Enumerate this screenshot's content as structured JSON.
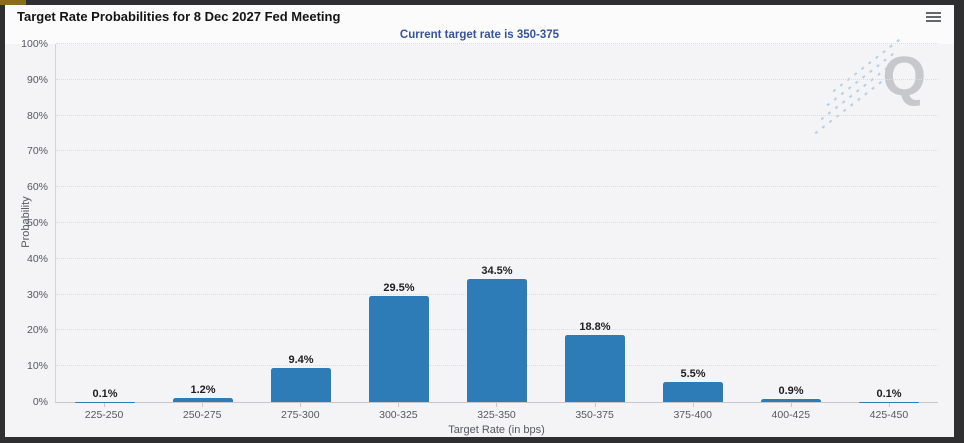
{
  "window": {
    "frame_color": "#2f2f31",
    "accent_color": "#8a6d1c"
  },
  "header": {
    "title": "Target Rate Probabilities for 8 Dec 2027 Fed Meeting",
    "menu_icon": "hamburger-icon"
  },
  "subtitle": "Current target rate is 350-375",
  "watermark_letter": "Q",
  "colors": {
    "bar": "#2d7cb8",
    "subtitle_text": "#35549b",
    "tick_text": "#55585e",
    "value_text": "#1e1e1e",
    "plot_background": "#f4f4f6",
    "watermark_gray": "#c6c8cb",
    "watermark_blue": "#b3d0e8"
  },
  "chart_data": {
    "type": "bar",
    "title": "Target Rate Probabilities for 8 Dec 2027 Fed Meeting",
    "subtitle": "Current target rate is 350-375",
    "categories": [
      "225-250",
      "250-275",
      "275-300",
      "300-325",
      "325-350",
      "350-375",
      "375-400",
      "400-425",
      "425-450"
    ],
    "values": [
      0.1,
      1.2,
      9.4,
      29.5,
      34.5,
      18.8,
      5.5,
      0.9,
      0.1
    ],
    "value_labels": [
      "0.1%",
      "1.2%",
      "9.4%",
      "29.5%",
      "34.5%",
      "18.8%",
      "5.5%",
      "0.9%",
      "0.1%"
    ],
    "xlabel": "Target Rate (in bps)",
    "ylabel": "Probability",
    "ylim": [
      0,
      100
    ],
    "ytick_step": 10,
    "ytick_labels": [
      "0%",
      "10%",
      "20%",
      "30%",
      "40%",
      "50%",
      "60%",
      "70%",
      "80%",
      "90%",
      "100%"
    ],
    "grid": "horizontal-dotted",
    "legend": "none",
    "bar_color": "#2d7cb8"
  }
}
